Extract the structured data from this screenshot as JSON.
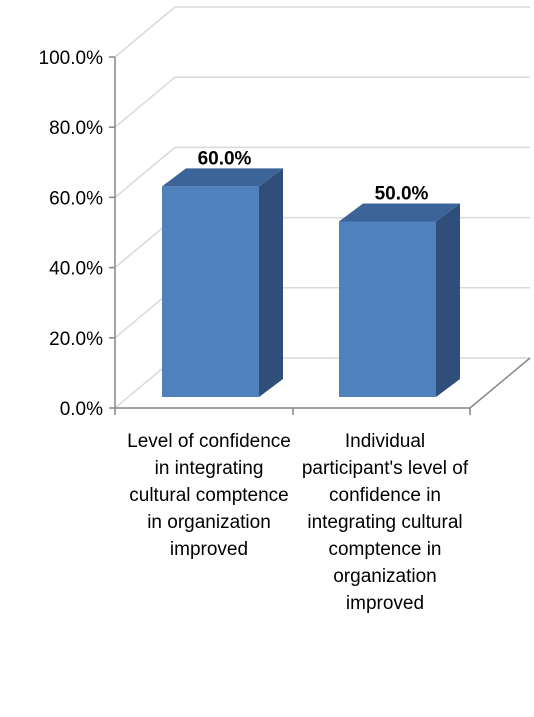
{
  "chart_data": {
    "type": "bar",
    "style": "3d-column",
    "categories": [
      "Level of confidence in integrating cultural comptence in organization improved",
      "Individual participant's level of confidence in integrating cultural comptence in organization improved"
    ],
    "values": [
      60.0,
      50.0
    ],
    "data_labels": [
      "60.0%",
      "50.0%"
    ],
    "yticks": [
      "0.0%",
      "20.0%",
      "40.0%",
      "60.0%",
      "80.0%",
      "100.0%"
    ],
    "ylim": [
      0,
      100
    ],
    "grid": true,
    "legend": "none",
    "colors": {
      "bar_front": "#4F81BD",
      "bar_side": "#2F4E7A",
      "bar_top": "#3C6499",
      "grid": "#D9D9D9"
    }
  }
}
